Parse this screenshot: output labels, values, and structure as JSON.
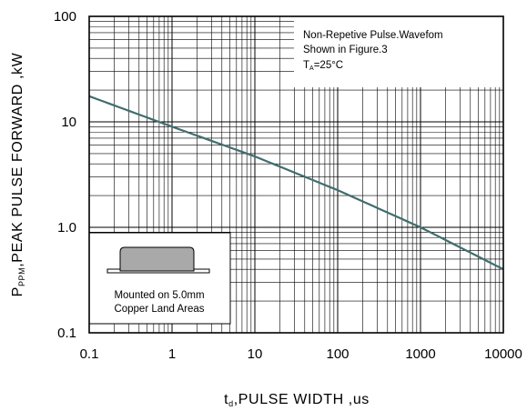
{
  "chart_data": {
    "type": "line",
    "xscale": "log",
    "yscale": "log",
    "xlim": [
      0.1,
      10000
    ],
    "ylim": [
      0.1,
      100
    ],
    "grid": true,
    "xlabel": {
      "prefix": "t",
      "sub": "d",
      "text": ",PULSE WIDTH ,us"
    },
    "ylabel": {
      "prefix": "P",
      "sub": "PPM",
      "text": ",PEAK PULSE FORWARD ,kW"
    },
    "x_ticks": [
      {
        "value": 0.1,
        "label": "0.1"
      },
      {
        "value": 1,
        "label": "1"
      },
      {
        "value": 10,
        "label": "10"
      },
      {
        "value": 100,
        "label": "100"
      },
      {
        "value": 1000,
        "label": "1000"
      },
      {
        "value": 10000,
        "label": "10000"
      }
    ],
    "y_ticks": [
      {
        "value": 0.1,
        "label": "0.1"
      },
      {
        "value": 1,
        "label": "1.0"
      },
      {
        "value": 10,
        "label": "10"
      },
      {
        "value": 100,
        "label": "100"
      }
    ],
    "series": [
      {
        "color": "#3f6d6d",
        "points": [
          {
            "x": 0.1,
            "y": 17.5
          },
          {
            "x": 1,
            "y": 9.0
          },
          {
            "x": 10,
            "y": 4.7
          },
          {
            "x": 100,
            "y": 2.25
          },
          {
            "x": 1000,
            "y": 1.0
          },
          {
            "x": 10000,
            "y": 0.4
          }
        ]
      }
    ],
    "annotations": {
      "top_right_lines": [
        "Non-Repetive  Pulse.Wavefom",
        "Shown in Figure.3"
      ],
      "temp": {
        "prefix": "T",
        "sub": "A",
        "text": "=25°C"
      },
      "package_note_lines": [
        "Mounted on 5.0mm",
        "Copper Land Areas"
      ]
    }
  }
}
